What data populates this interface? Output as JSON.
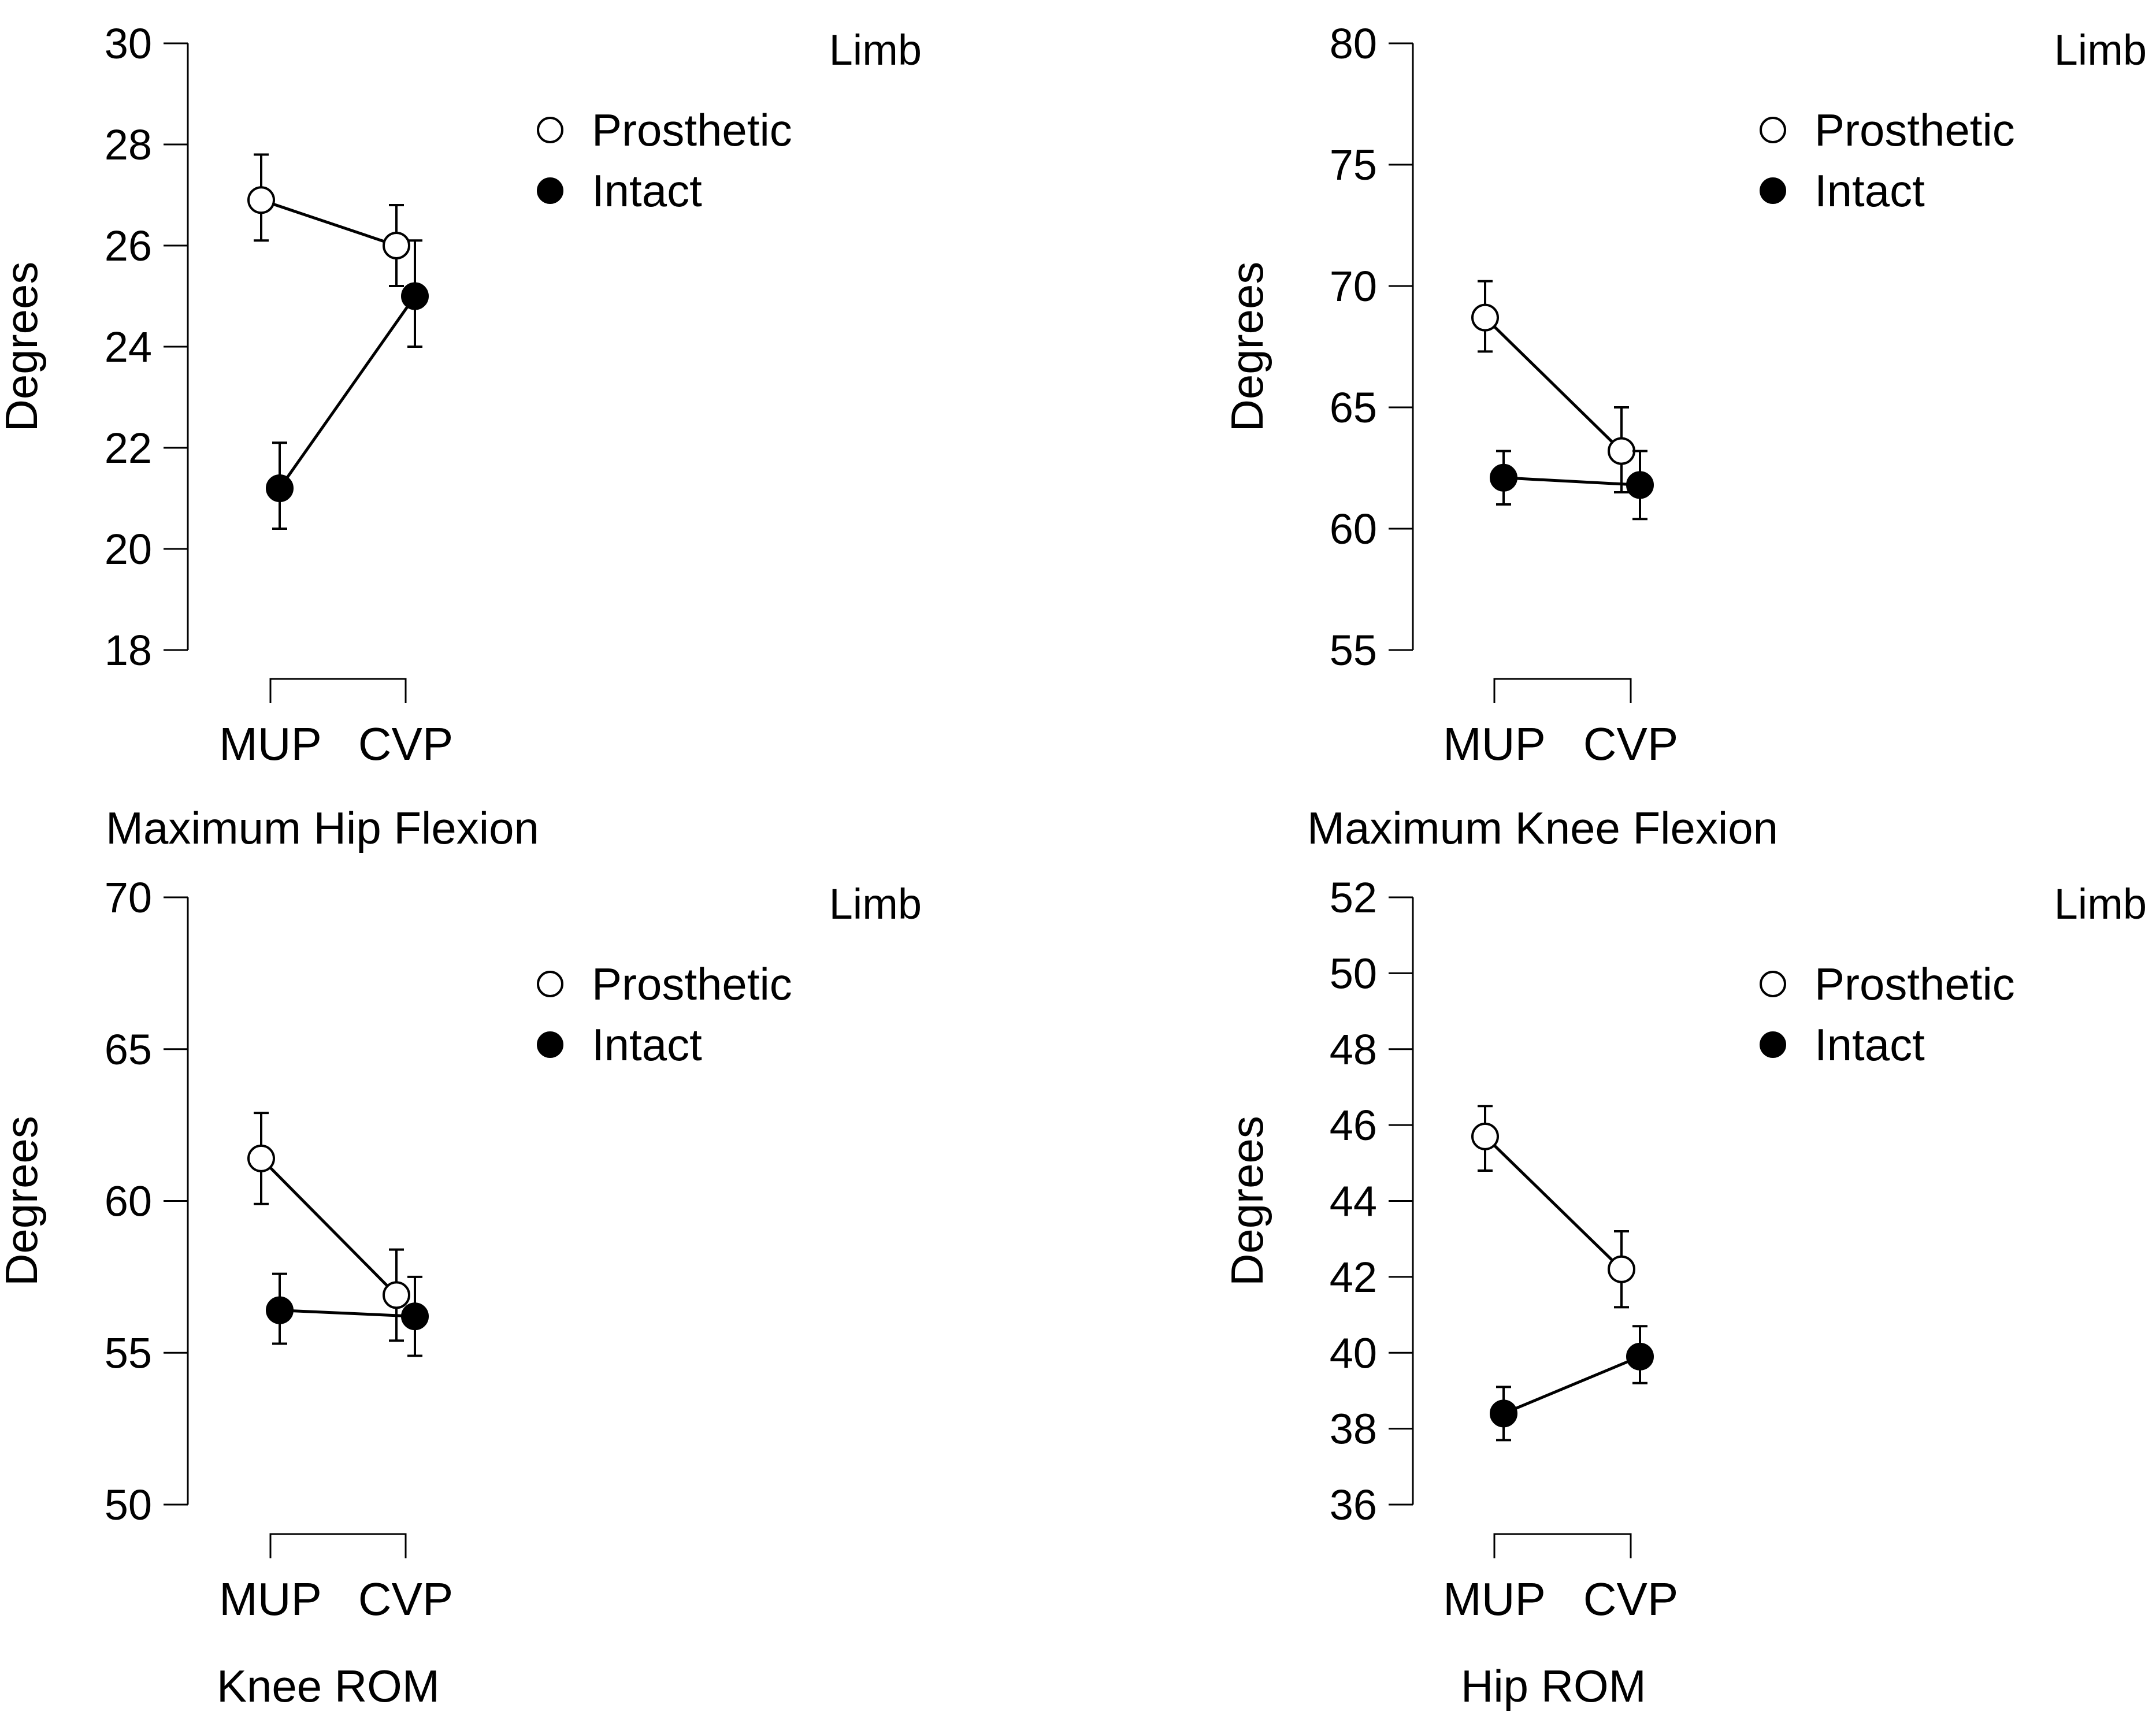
{
  "figure": {
    "legend_title": "Limb",
    "legend_items": [
      {
        "name": "Prosthetic",
        "marker": "open-circle"
      },
      {
        "name": "Intact",
        "marker": "filled-circle"
      }
    ],
    "categories": [
      "MUP",
      "CVP"
    ],
    "ylabel": "Degrees",
    "colors": {
      "line": "#000000",
      "background": "#ffffff",
      "open_fill": "#ffffff",
      "filled_fill": "#000000"
    }
  },
  "chart_data": [
    {
      "type": "line",
      "title": "Maximum Hip Flexion",
      "categories": [
        "MUP",
        "CVP"
      ],
      "ylabel": "Degrees",
      "ylim": [
        18,
        30
      ],
      "yticks": [
        18,
        20,
        22,
        24,
        26,
        28,
        30
      ],
      "series": [
        {
          "name": "Prosthetic",
          "values": [
            26.9,
            26.0
          ],
          "lower": [
            26.1,
            25.2
          ],
          "upper": [
            27.8,
            26.8
          ]
        },
        {
          "name": "Intact",
          "values": [
            21.2,
            25.0
          ],
          "lower": [
            20.4,
            24.0
          ],
          "upper": [
            22.1,
            26.1
          ]
        }
      ]
    },
    {
      "type": "line",
      "title": "Maximum Knee Flexion",
      "categories": [
        "MUP",
        "CVP"
      ],
      "ylabel": "Degrees",
      "ylim": [
        55,
        80
      ],
      "yticks": [
        55,
        60,
        65,
        70,
        75,
        80
      ],
      "series": [
        {
          "name": "Prosthetic",
          "values": [
            68.7,
            63.2
          ],
          "lower": [
            67.3,
            61.5
          ],
          "upper": [
            70.2,
            65.0
          ]
        },
        {
          "name": "Intact",
          "values": [
            62.1,
            61.8
          ],
          "lower": [
            61.0,
            60.4
          ],
          "upper": [
            63.2,
            63.2
          ]
        }
      ]
    },
    {
      "type": "line",
      "title": "Knee ROM",
      "categories": [
        "MUP",
        "CVP"
      ],
      "ylabel": "Degrees",
      "ylim": [
        50,
        70
      ],
      "yticks": [
        50,
        55,
        60,
        65,
        70
      ],
      "series": [
        {
          "name": "Prosthetic",
          "values": [
            61.4,
            56.9
          ],
          "lower": [
            59.9,
            55.4
          ],
          "upper": [
            62.9,
            58.4
          ]
        },
        {
          "name": "Intact",
          "values": [
            56.4,
            56.2
          ],
          "lower": [
            55.3,
            54.9
          ],
          "upper": [
            57.6,
            57.5
          ]
        }
      ]
    },
    {
      "type": "line",
      "title": "Hip ROM",
      "categories": [
        "MUP",
        "CVP"
      ],
      "ylabel": "Degrees",
      "ylim": [
        36,
        52
      ],
      "yticks": [
        36,
        38,
        40,
        42,
        44,
        46,
        48,
        50,
        52
      ],
      "series": [
        {
          "name": "Prosthetic",
          "values": [
            45.7,
            42.2
          ],
          "lower": [
            44.8,
            41.2
          ],
          "upper": [
            46.5,
            43.2
          ]
        },
        {
          "name": "Intact",
          "values": [
            38.4,
            39.9
          ],
          "lower": [
            37.7,
            39.2
          ],
          "upper": [
            39.1,
            40.7
          ]
        }
      ]
    }
  ]
}
